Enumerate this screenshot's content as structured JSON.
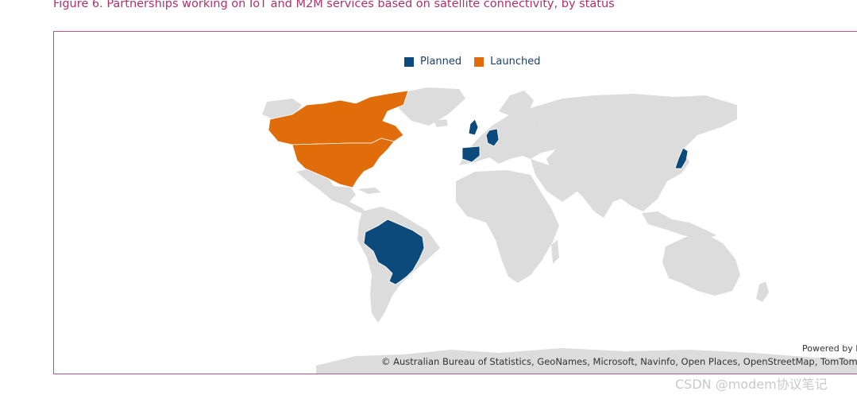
{
  "figure": {
    "caption": "Figure 6. Partnerships working on IoT and M2M services based on satellite connectivity, by status"
  },
  "legend": {
    "items": [
      {
        "label": "Planned",
        "color": "#0b4a7a"
      },
      {
        "label": "Launched",
        "color": "#e06c0a"
      }
    ]
  },
  "map": {
    "base_color": "#dcdcdc",
    "countries": [
      {
        "name": "United States",
        "status": "Launched"
      },
      {
        "name": "Canada",
        "status": "Launched"
      },
      {
        "name": "Brazil",
        "status": "Planned"
      },
      {
        "name": "United Kingdom",
        "status": "Planned"
      },
      {
        "name": "Germany",
        "status": "Planned"
      },
      {
        "name": "Spain",
        "status": "Planned"
      },
      {
        "name": "Japan",
        "status": "Planned"
      }
    ],
    "powered_by": "Powered by B",
    "credits": "© Australian Bureau of Statistics, GeoNames, Microsoft, Navinfo, Open Places, OpenStreetMap, TomTom, Zenr"
  },
  "watermark": "CSDN @modem协议笔记"
}
